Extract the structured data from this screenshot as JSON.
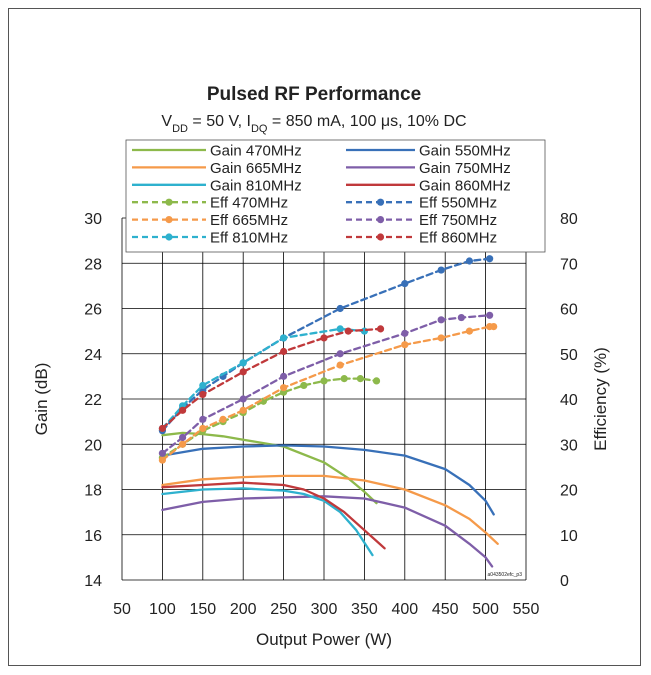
{
  "chart_data": {
    "type": "line",
    "title": "Pulsed RF Performance",
    "subtitle": {
      "parts": [
        {
          "text": "V",
          "sub": false
        },
        {
          "text": "DD",
          "sub": true
        },
        {
          "text": " = 50 V, I",
          "sub": false
        },
        {
          "text": "DQ",
          "sub": true
        },
        {
          "text": " = 850 mA, 100 μs, 10% DC",
          "sub": false
        }
      ]
    },
    "xlabel": "Output Power (W)",
    "ylabel": "Gain (dB)",
    "y2label": "Efficiency (%)",
    "xlim": [
      50,
      550
    ],
    "ylim": [
      14,
      30
    ],
    "y2lim": [
      0,
      80
    ],
    "xticks": [
      "50",
      "100",
      "150",
      "200",
      "250",
      "300",
      "350",
      "400",
      "450",
      "500",
      "550"
    ],
    "yticks": [
      "14",
      "16",
      "18",
      "20",
      "22",
      "24",
      "26",
      "28",
      "30"
    ],
    "y2ticks": [
      "0",
      "10",
      "20",
      "30",
      "40",
      "50",
      "60",
      "70",
      "80"
    ],
    "grid": true,
    "legend_position": "top",
    "watermark": "a043502efc_p3",
    "series": [
      {
        "name": "Gain 470MHz",
        "axis": "left",
        "style": "solid",
        "color": "#8DB94B",
        "x": [
          100,
          125,
          150,
          175,
          200,
          250,
          300,
          330,
          350,
          365
        ],
        "y": [
          20.4,
          20.5,
          20.45,
          20.35,
          20.2,
          19.9,
          19.2,
          18.5,
          17.9,
          17.4
        ]
      },
      {
        "name": "Gain 550MHz",
        "axis": "left",
        "style": "solid",
        "color": "#3870B8",
        "x": [
          100,
          150,
          200,
          250,
          300,
          350,
          400,
          450,
          480,
          500,
          510
        ],
        "y": [
          19.5,
          19.8,
          19.9,
          19.95,
          19.9,
          19.75,
          19.5,
          18.9,
          18.2,
          17.5,
          16.9
        ]
      },
      {
        "name": "Gain 665MHz",
        "axis": "left",
        "style": "solid",
        "color": "#F59A4A",
        "x": [
          100,
          150,
          200,
          250,
          300,
          350,
          400,
          450,
          480,
          500,
          515
        ],
        "y": [
          18.2,
          18.45,
          18.55,
          18.6,
          18.6,
          18.4,
          18.0,
          17.3,
          16.7,
          16.1,
          15.6
        ]
      },
      {
        "name": "Gain 750MHz",
        "axis": "left",
        "style": "solid",
        "color": "#7E5EA8",
        "x": [
          100,
          150,
          200,
          250,
          300,
          350,
          400,
          450,
          480,
          500,
          508
        ],
        "y": [
          17.1,
          17.45,
          17.6,
          17.65,
          17.7,
          17.6,
          17.2,
          16.4,
          15.6,
          15.0,
          14.6
        ]
      },
      {
        "name": "Gain 810MHz",
        "axis": "left",
        "style": "solid",
        "color": "#2EB1CE",
        "x": [
          100,
          150,
          200,
          250,
          275,
          300,
          320,
          340,
          360
        ],
        "y": [
          17.8,
          18.0,
          18.05,
          17.95,
          17.8,
          17.5,
          17.0,
          16.2,
          15.1
        ]
      },
      {
        "name": "Gain 860MHz",
        "axis": "left",
        "style": "solid",
        "color": "#C0393B",
        "x": [
          100,
          150,
          200,
          250,
          275,
          300,
          325,
          350,
          375
        ],
        "y": [
          18.1,
          18.2,
          18.3,
          18.2,
          18.0,
          17.6,
          17.0,
          16.2,
          15.4
        ]
      },
      {
        "name": "Eff 470MHz",
        "axis": "right",
        "style": "dashed",
        "color": "#8DB94B",
        "x": [
          100,
          125,
          150,
          175,
          200,
          225,
          250,
          275,
          300,
          325,
          345,
          365
        ],
        "y": [
          27,
          30,
          33,
          35,
          37,
          39.5,
          41.5,
          43,
          44,
          44.5,
          44.5,
          44
        ]
      },
      {
        "name": "Eff 550MHz",
        "axis": "right",
        "style": "dashed",
        "color": "#3870B8",
        "x": [
          100,
          125,
          150,
          175,
          200,
          250,
          320,
          400,
          445,
          480,
          505
        ],
        "y": [
          33,
          38,
          42,
          45,
          48,
          53.5,
          60,
          65.5,
          68.5,
          70.5,
          71
        ]
      },
      {
        "name": "Eff 665MHz",
        "axis": "right",
        "style": "dashed",
        "color": "#F59A4A",
        "x": [
          100,
          125,
          150,
          175,
          200,
          250,
          320,
          400,
          445,
          480,
          505,
          510
        ],
        "y": [
          26.5,
          30,
          33.5,
          35.5,
          37.5,
          42.5,
          47.5,
          52,
          53.5,
          55,
          56,
          56
        ]
      },
      {
        "name": "Eff 750MHz",
        "axis": "right",
        "style": "dashed",
        "color": "#7E5EA8",
        "x": [
          100,
          125,
          150,
          200,
          250,
          320,
          400,
          445,
          470,
          505
        ],
        "y": [
          28,
          31.5,
          35.5,
          40,
          45,
          50,
          54.5,
          57.5,
          58,
          58.5
        ]
      },
      {
        "name": "Eff 810MHz",
        "axis": "right",
        "style": "dashed",
        "color": "#2EB1CE",
        "x": [
          100,
          125,
          150,
          200,
          250,
          320,
          350
        ],
        "y": [
          33.5,
          38.5,
          43,
          48,
          53.5,
          55.5,
          55
        ]
      },
      {
        "name": "Eff 860MHz",
        "axis": "right",
        "style": "dashed",
        "color": "#C0393B",
        "x": [
          100,
          125,
          150,
          200,
          250,
          300,
          330,
          370
        ],
        "y": [
          33.5,
          37.5,
          41,
          46,
          50.5,
          53.5,
          55,
          55.5
        ]
      }
    ]
  }
}
